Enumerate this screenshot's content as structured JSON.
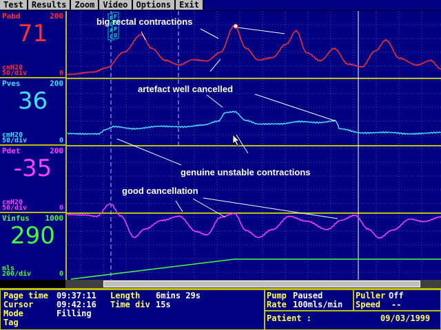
{
  "menu": [
    "Test",
    "Results",
    "Zoom",
    "Video",
    "Options",
    "Exit"
  ],
  "channels": [
    {
      "name": "Pabd",
      "max": "200",
      "value": "71",
      "unit": "cmH20",
      "div": "50/div",
      "min": "0",
      "color": "#ff3030",
      "valueColor": "#ff3030"
    },
    {
      "name": "Pves",
      "max": "200",
      "value": "36",
      "unit": "cmH20",
      "div": "50/div",
      "min": "0",
      "color": "#40e0ff",
      "valueColor": "#40e0ff"
    },
    {
      "name": "Pdet",
      "max": "200",
      "value": "-35",
      "unit": "cmH20",
      "div": "50/div",
      "min": "0",
      "color": "#ff40ff",
      "valueColor": "#ff40ff"
    },
    {
      "name": "Vinfus",
      "max": "1000",
      "value": "290",
      "unit": "mls",
      "div": "200/div",
      "min": "0",
      "color": "#40ff40",
      "valueColor": "#40ff40"
    }
  ],
  "markers": {
    "m1": "PCAC",
    "m2": "FSPU"
  },
  "annotations": {
    "a1": "big rectal contractions",
    "a2": "artefact well cancelled",
    "a3": "genuine unstable contractions",
    "a4": "good cancellation"
  },
  "status": {
    "page_time_label": "Page time",
    "page_time": "09:37:11",
    "length_label": "Length",
    "length": "6mins 29s",
    "cursor_label": "Cursor",
    "cursor": "09:42:16",
    "time_div_label": "Time div",
    "time_div": "15s",
    "mode_label": "Mode",
    "mode": "Filling",
    "tag_label": "Tag",
    "pump_label": "Pump",
    "pump": "Paused",
    "rate_label": "Rate",
    "rate": "100mls/min",
    "puller_label": "Puller",
    "puller": "Off",
    "speed_label": "Speed",
    "speed": "--",
    "patient_label": "Patient :",
    "date": "09/03/1999"
  },
  "colors": {
    "background": "#000080",
    "grid": "#4040c0",
    "separator": "#c0c000",
    "cursor": "#ffffff"
  }
}
